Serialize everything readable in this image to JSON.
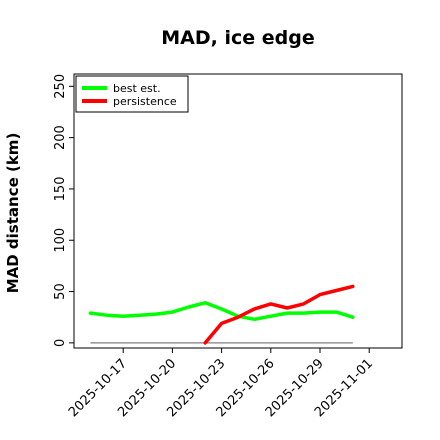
{
  "chart_data": {
    "type": "line",
    "title": "MAD, ice edge",
    "xlabel": "",
    "ylabel": "MAD distance (km)",
    "xlim": [
      "2025-10-14",
      "2025-11-03"
    ],
    "ylim": [
      -5,
      262
    ],
    "yticks": [
      0,
      50,
      100,
      150,
      200,
      250
    ],
    "xticks": [
      "2025-10-17",
      "2025-10-20",
      "2025-10-23",
      "2025-10-26",
      "2025-10-29",
      "2025-11-01"
    ],
    "legend_position": "top-left",
    "grid": false,
    "reference_line": {
      "y": 0,
      "from": "2025-10-15",
      "to": "2025-10-31",
      "color": "#7f7f7f"
    },
    "series": [
      {
        "name": "best est.",
        "color": "#00ff00",
        "x": [
          "2025-10-15",
          "2025-10-16",
          "2025-10-17",
          "2025-10-18",
          "2025-10-19",
          "2025-10-20",
          "2025-10-21",
          "2025-10-22",
          "2025-10-23",
          "2025-10-24",
          "2025-10-25",
          "2025-10-26",
          "2025-10-27",
          "2025-10-28",
          "2025-10-29",
          "2025-10-30",
          "2025-10-31"
        ],
        "values": [
          29,
          27,
          26,
          27,
          28,
          30,
          35,
          39,
          33,
          26,
          23,
          26,
          29,
          29,
          30,
          30,
          25
        ]
      },
      {
        "name": "persistence",
        "color": "#ff0000",
        "x": [
          "2025-10-22",
          "2025-10-23",
          "2025-10-24",
          "2025-10-25",
          "2025-10-26",
          "2025-10-27",
          "2025-10-28",
          "2025-10-29",
          "2025-10-30",
          "2025-10-31"
        ],
        "values": [
          0,
          19,
          25,
          33,
          38,
          34,
          38,
          47,
          51,
          55
        ]
      }
    ]
  }
}
